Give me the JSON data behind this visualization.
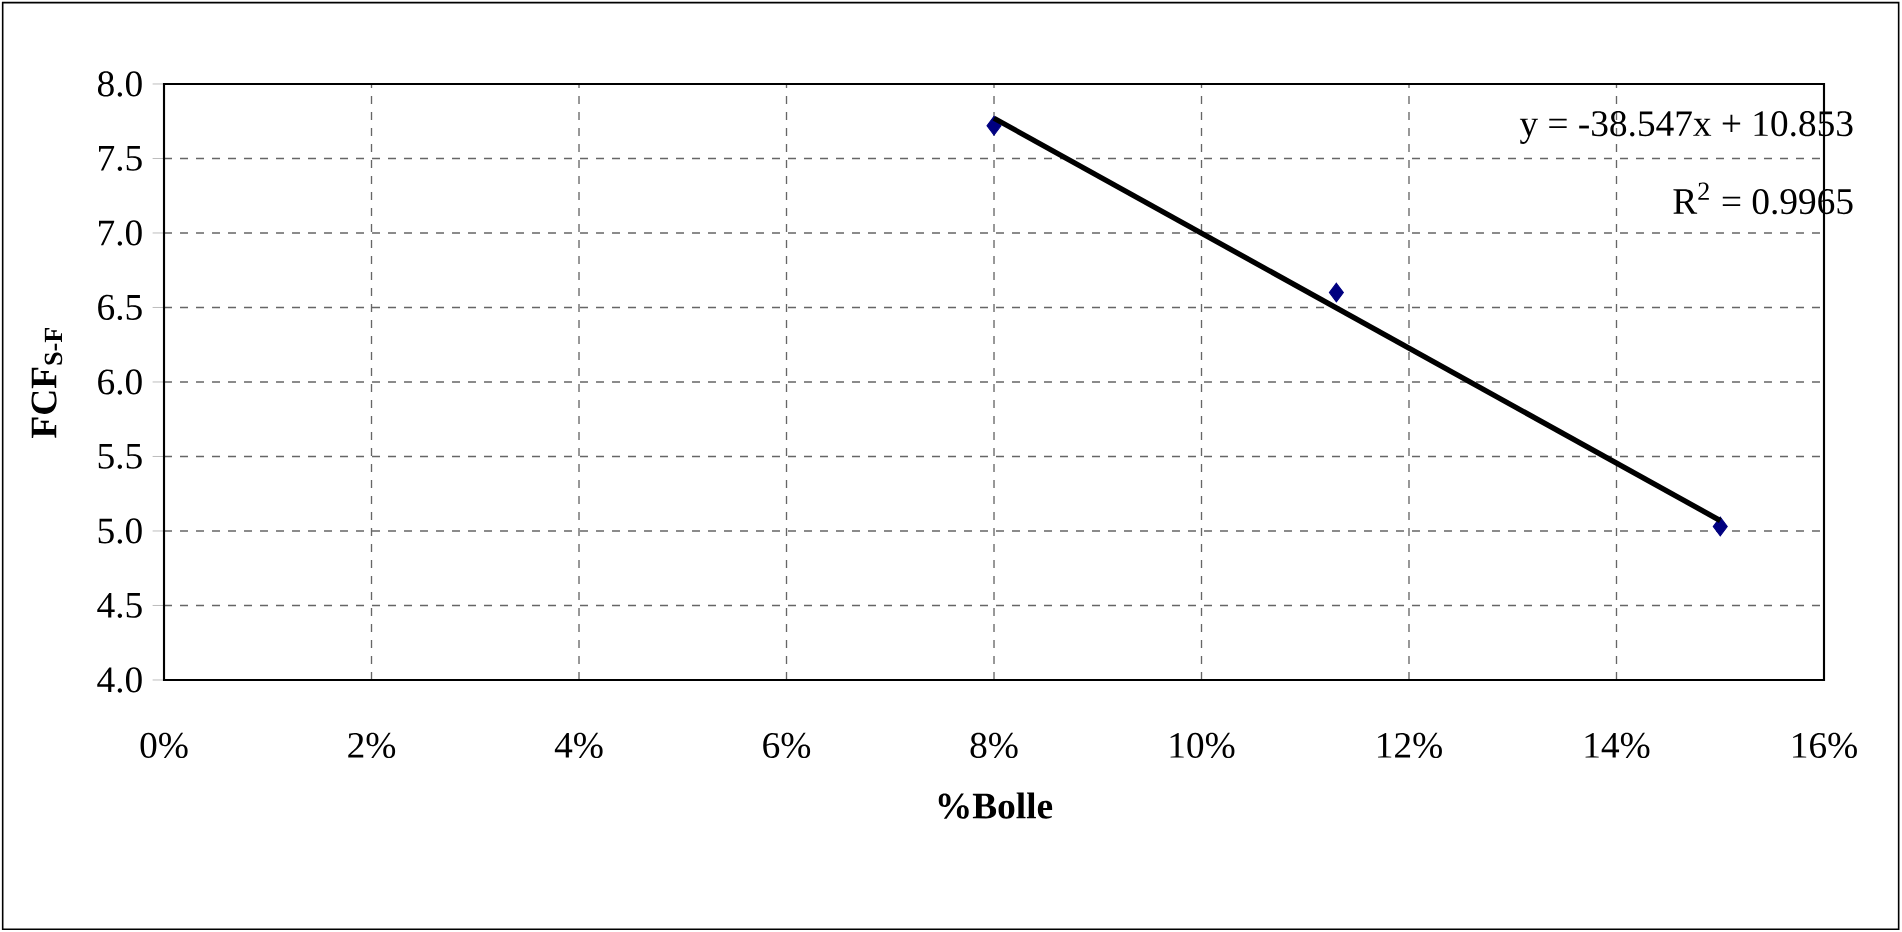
{
  "chart_data": {
    "type": "scatter",
    "xlabel": "%Bolle",
    "ylabel": "FCF$_{S-F}$",
    "xlim": [
      0,
      16
    ],
    "ylim": [
      4,
      8
    ],
    "xticks": [
      {
        "value": 0,
        "label": "0%"
      },
      {
        "value": 2,
        "label": "2%"
      },
      {
        "value": 4,
        "label": "4%"
      },
      {
        "value": 6,
        "label": "6%"
      },
      {
        "value": 8,
        "label": "8%"
      },
      {
        "value": 10,
        "label": "10%"
      },
      {
        "value": 12,
        "label": "12%"
      },
      {
        "value": 14,
        "label": "14%"
      },
      {
        "value": 16,
        "label": "16%"
      }
    ],
    "yticks": [
      {
        "value": 4,
        "label": "4.0"
      },
      {
        "value": 4.5,
        "label": "4.5"
      },
      {
        "value": 5,
        "label": "5.0"
      },
      {
        "value": 5.5,
        "label": "5.5"
      },
      {
        "value": 6,
        "label": "6.0"
      },
      {
        "value": 6.5,
        "label": "6.5"
      },
      {
        "value": 7,
        "label": "7.0"
      },
      {
        "value": 7.5,
        "label": "7.5"
      },
      {
        "value": 8,
        "label": "8.0"
      }
    ],
    "grid": true,
    "series": [
      {
        "marker": "diamond",
        "color": "#000080",
        "x": [
          8,
          11.3,
          15
        ],
        "values": [
          7.72,
          6.6,
          5.03
        ]
      },
      {
        "type": "line",
        "marker": "none",
        "color": "#000000",
        "x": [
          8,
          15
        ],
        "values": [
          7.77,
          5.07
        ]
      }
    ],
    "annotations": [
      "y = -38.547x + 10.853",
      "R$^{2}$ = 0.9965"
    ]
  }
}
